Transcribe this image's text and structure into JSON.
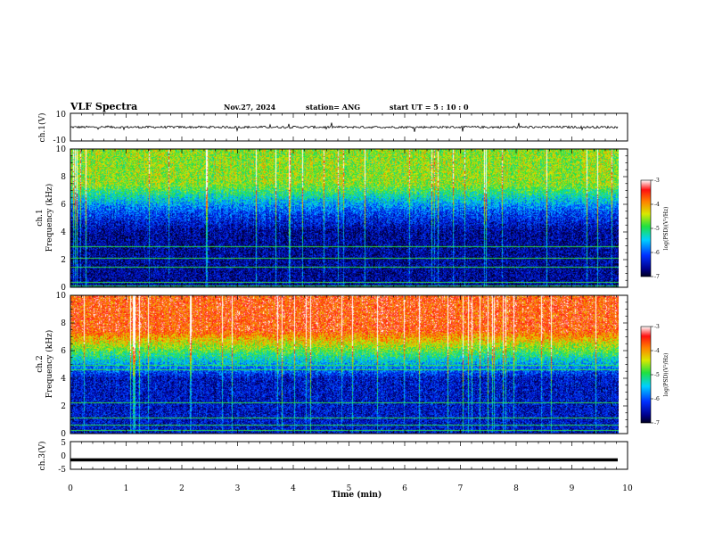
{
  "header": {
    "title": "VLF Spectra",
    "date": "Nov.27, 2024",
    "station": "station= ANG",
    "start": "start UT =  5 : 10 : 0"
  },
  "chart_data": [
    {
      "type": "line",
      "panel": "ch1-waveform",
      "ylabel": "ch.1(V)",
      "ylim": [
        -10,
        10
      ],
      "yticks": [
        "10",
        "-10"
      ],
      "xlim": [
        0,
        10
      ],
      "series": [
        {
          "values_note": "noisy trace centered near 0 V with spikes",
          "center": 0
        }
      ]
    },
    {
      "type": "heatmap",
      "panel": "ch1-spectrogram",
      "ylabel": "ch.1\nFrequency (kHz)",
      "ylim": [
        0,
        10
      ],
      "yticks": [
        "0",
        "2",
        "4",
        "6",
        "8",
        "10"
      ],
      "xlim": [
        0,
        10
      ],
      "colorbar": {
        "label": "log(PSD)(V²/Hz)",
        "ticks": [
          "-3",
          "-4",
          "-5",
          "-6",
          "-7"
        ],
        "range": [
          -7,
          -3
        ]
      },
      "intensity_profile": {
        "low_band": -6.6,
        "mid_band": -6.0,
        "high_band": -4.6
      }
    },
    {
      "type": "heatmap",
      "panel": "ch2-spectrogram",
      "ylabel": "ch.2\nFrequency (kHz)",
      "ylim": [
        0,
        10
      ],
      "yticks": [
        "0",
        "2",
        "4",
        "6",
        "8",
        "10"
      ],
      "xlim": [
        0,
        10
      ],
      "colorbar": {
        "label": "log(PSD)(V²/Hz)",
        "ticks": [
          "-3",
          "-4",
          "-5",
          "-6",
          "-7"
        ],
        "range": [
          -7,
          -3
        ]
      },
      "intensity_profile": {
        "low_band": -6.4,
        "mid_band": -5.2,
        "high_band": -3.6
      }
    },
    {
      "type": "line",
      "panel": "ch3-waveform",
      "ylabel": "ch.3(V)",
      "ylim": [
        -5,
        5
      ],
      "yticks": [
        "5",
        "0",
        "-5"
      ],
      "xlim": [
        0,
        10
      ],
      "series": [
        {
          "constant": -1.6
        }
      ]
    }
  ],
  "xaxis": {
    "label": "Time (min)",
    "ticks": [
      "0",
      "1",
      "2",
      "3",
      "4",
      "5",
      "6",
      "7",
      "8",
      "9",
      "10"
    ]
  }
}
